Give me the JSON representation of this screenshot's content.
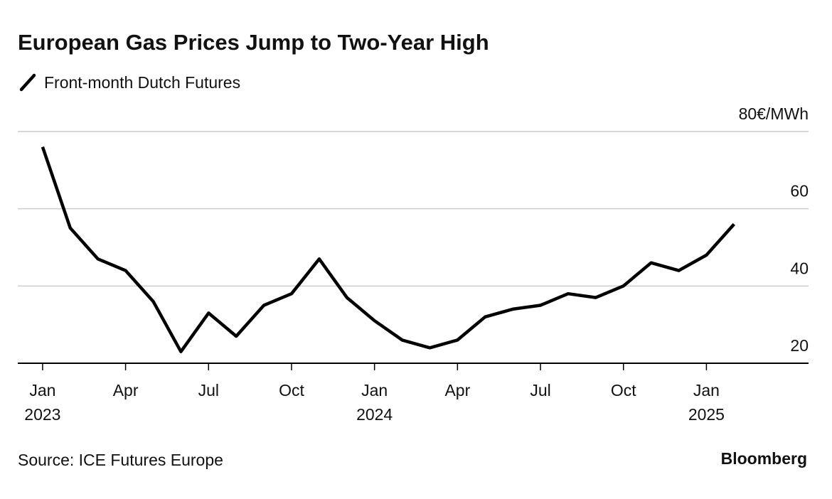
{
  "chart_data": {
    "type": "line",
    "title": "European Gas Prices Jump to Two-Year High",
    "source": "Source: ICE Futures Europe",
    "brand": "Bloomberg",
    "x": [
      "2023-01",
      "2023-02",
      "2023-03",
      "2023-04",
      "2023-05",
      "2023-06",
      "2023-07",
      "2023-08",
      "2023-09",
      "2023-10",
      "2023-11",
      "2023-12",
      "2024-01",
      "2024-02",
      "2024-03",
      "2024-04",
      "2024-05",
      "2024-06",
      "2024-07",
      "2024-08",
      "2024-09",
      "2024-10",
      "2024-11",
      "2024-12",
      "2025-01",
      "2025-02"
    ],
    "series": [
      {
        "name": "Front-month Dutch Futures",
        "color": "#000000",
        "values": [
          76,
          55,
          47,
          44,
          36,
          23,
          33,
          27,
          35,
          38,
          47,
          37,
          31,
          26,
          24,
          26,
          32,
          34,
          35,
          38,
          37,
          40,
          46,
          44,
          48,
          56
        ]
      }
    ],
    "xlim": [
      "2022-12",
      "2025-05"
    ],
    "xticks": [
      {
        "value": "2023-01",
        "label": "Jan 2023"
      },
      {
        "value": "2023-04",
        "label": "Apr"
      },
      {
        "value": "2023-07",
        "label": "Jul"
      },
      {
        "value": "2023-10",
        "label": "Oct"
      },
      {
        "value": "2024-01",
        "label": "Jan 2024"
      },
      {
        "value": "2024-04",
        "label": "Apr"
      },
      {
        "value": "2024-07",
        "label": "Jul"
      },
      {
        "value": "2024-10",
        "label": "Oct"
      },
      {
        "value": "2025-01",
        "label": "Jan 2025"
      }
    ],
    "ylim": [
      20,
      80
    ],
    "yticks": [
      20,
      40,
      60,
      {
        "value": 80,
        "label": "80€/MWh"
      }
    ],
    "grid": true
  }
}
